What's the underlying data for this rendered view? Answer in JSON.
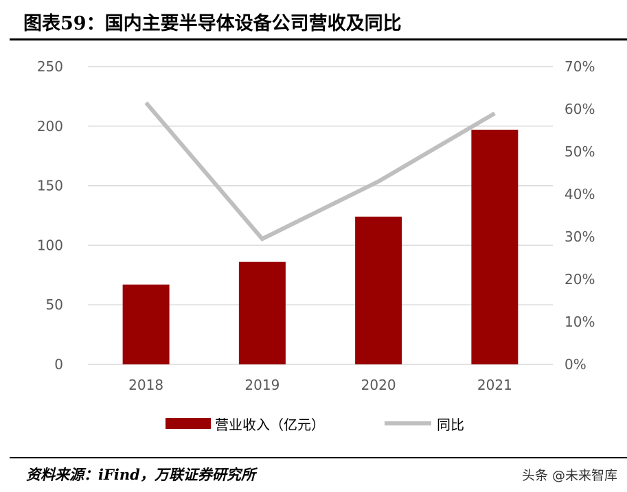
{
  "title": "图表59：国内主要半导体设备公司营收及同比",
  "source": "资料来源：iFind，万联证券研究所",
  "watermark": "头条 @未来智库",
  "colors": {
    "bar": "#990000",
    "line": "#BFBFBF",
    "grid": "#D9D9D9"
  },
  "chart_data": {
    "type": "bar",
    "categories": [
      "2018",
      "2019",
      "2020",
      "2021"
    ],
    "series": [
      {
        "name": "营业收入（亿元）",
        "type": "bar",
        "axis": "left",
        "values": [
          67,
          86,
          124,
          197
        ]
      },
      {
        "name": "同比",
        "type": "line",
        "axis": "right",
        "values": [
          61.5,
          29.5,
          43,
          59
        ]
      }
    ],
    "y_left": {
      "ylim": [
        0,
        250
      ],
      "ticks": [
        "0",
        "50",
        "100",
        "150",
        "200",
        "250"
      ]
    },
    "y_right": {
      "ylim": [
        0,
        70
      ],
      "ticks": [
        "0%",
        "10%",
        "20%",
        "30%",
        "40%",
        "50%",
        "60%",
        "70%"
      ]
    },
    "grid": true,
    "legend": "bottom"
  }
}
